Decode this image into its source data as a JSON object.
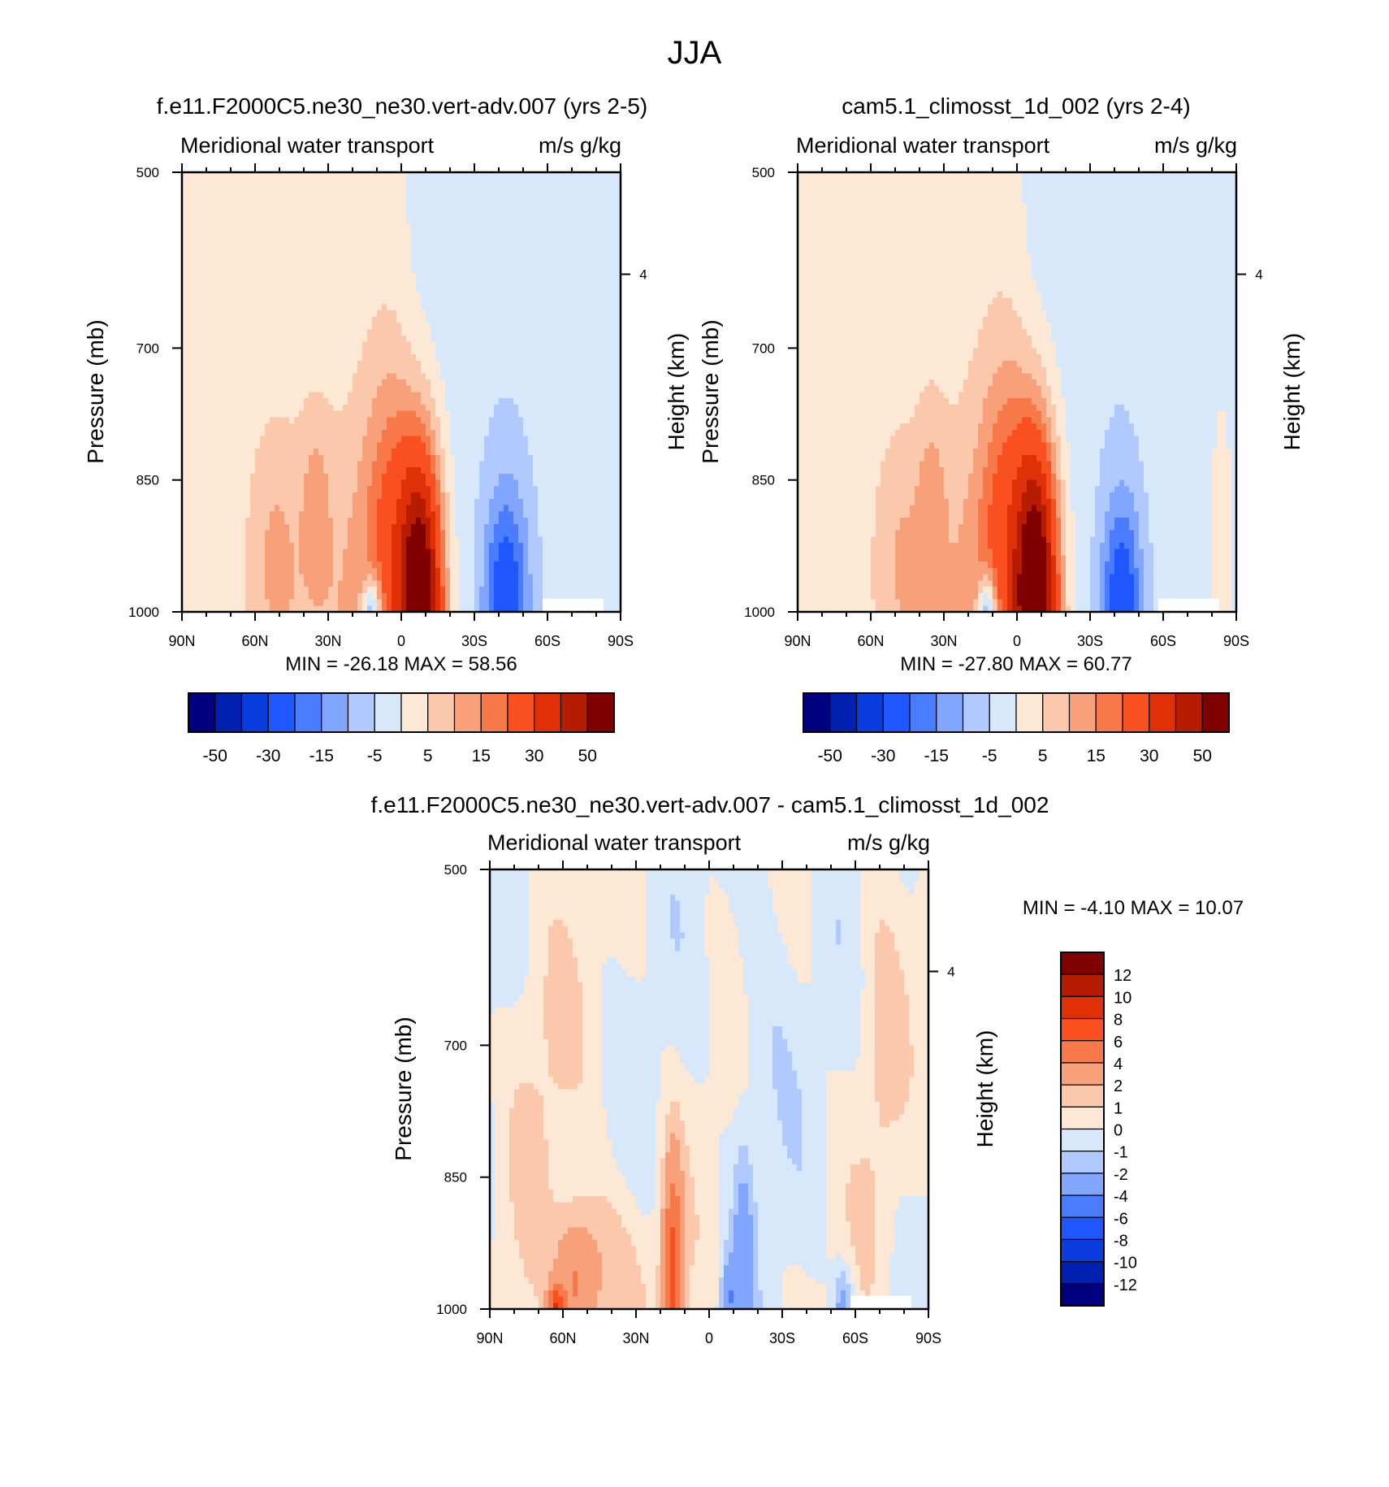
{
  "title": "JJA",
  "palette_main": [
    "#000080",
    "#0020b0",
    "#0a3ddd",
    "#1e56ff",
    "#4a7cff",
    "#80a6ff",
    "#b0c9ff",
    "#d8e8fb",
    "#fde8d6",
    "#fbc8ab",
    "#f8a07a",
    "#f77848",
    "#fa5020",
    "#e03008",
    "#b51c00",
    "#800000"
  ],
  "palette_diff": [
    "#000080",
    "#0020b0",
    "#0a3ddd",
    "#1e56ff",
    "#4a7cff",
    "#80a6ff",
    "#b0c9ff",
    "#d8e8fb",
    "#fde8d6",
    "#fbc8ab",
    "#f8a07a",
    "#f77848",
    "#fa5020",
    "#e03008",
    "#b51c00",
    "#800000"
  ],
  "missing_color": "#ffffff",
  "chart_data": [
    {
      "type": "heatmap",
      "subtitle": "f.e11.F2000C5.ne30_ne30.vert-adv.007 (yrs 2-5)",
      "left_label": "Meridional water transport",
      "right_label": "m/s g/kg",
      "ylabel": "Pressure (mb)",
      "ylabel_right": "Height (km)",
      "x_ticks": [
        "90N",
        "60N",
        "30N",
        "0",
        "30S",
        "60S",
        "90S"
      ],
      "y_ticks": [
        "500",
        "700",
        "850",
        "1000"
      ],
      "right_ticks": [
        "4"
      ],
      "xlim": [
        90,
        -90
      ],
      "ylim": [
        1000,
        500
      ],
      "min_max": "MIN = -26.18  MAX =  58.56",
      "colorbar_labels": [
        "-50",
        "-30",
        "-15",
        "-5",
        "5",
        "15",
        "30",
        "50"
      ],
      "colorbar_levels": [
        -50,
        -40,
        -30,
        -20,
        -15,
        -10,
        -5,
        0,
        5,
        10,
        15,
        20,
        30,
        40,
        50
      ],
      "min": -26.18,
      "max": 58.56,
      "variant": "model1"
    },
    {
      "type": "heatmap",
      "subtitle": "cam5.1_climosst_1d_002 (yrs 2-4)",
      "left_label": "Meridional water transport",
      "right_label": "m/s g/kg",
      "ylabel": "Pressure (mb)",
      "ylabel_right": "Height (km)",
      "x_ticks": [
        "90N",
        "60N",
        "30N",
        "0",
        "30S",
        "60S",
        "90S"
      ],
      "y_ticks": [
        "500",
        "700",
        "850",
        "1000"
      ],
      "right_ticks": [
        "4"
      ],
      "xlim": [
        90,
        -90
      ],
      "ylim": [
        1000,
        500
      ],
      "min_max": "MIN = -27.80  MAX =  60.77",
      "colorbar_labels": [
        "-50",
        "-30",
        "-15",
        "-5",
        "5",
        "15",
        "30",
        "50"
      ],
      "colorbar_levels": [
        -50,
        -40,
        -30,
        -20,
        -15,
        -10,
        -5,
        0,
        5,
        10,
        15,
        20,
        30,
        40,
        50
      ],
      "min": -27.8,
      "max": 60.77,
      "variant": "model2"
    },
    {
      "type": "heatmap",
      "subtitle": "f.e11.F2000C5.ne30_ne30.vert-adv.007 - cam5.1_climosst_1d_002",
      "left_label": "Meridional water transport",
      "right_label": "m/s g/kg",
      "ylabel": "Pressure (mb)",
      "ylabel_right": "Height (km)",
      "x_ticks": [
        "90N",
        "60N",
        "30N",
        "0",
        "30S",
        "60S",
        "90S"
      ],
      "y_ticks": [
        "500",
        "700",
        "850",
        "1000"
      ],
      "right_ticks": [
        "4"
      ],
      "xlim": [
        90,
        -90
      ],
      "ylim": [
        1000,
        500
      ],
      "min_max": "MIN =  -4.10  MAX =  10.07",
      "colorbar_labels": [
        "12",
        "10",
        "8",
        "6",
        "4",
        "2",
        "1",
        "0",
        "-1",
        "-2",
        "-4",
        "-6",
        "-8",
        "-10",
        "-12"
      ],
      "colorbar_levels": [
        -12,
        -10,
        -8,
        -6,
        -4,
        -2,
        -1,
        0,
        1,
        2,
        4,
        6,
        8,
        10,
        12
      ],
      "min": -4.1,
      "max": 10.07,
      "variant": "diff"
    }
  ]
}
